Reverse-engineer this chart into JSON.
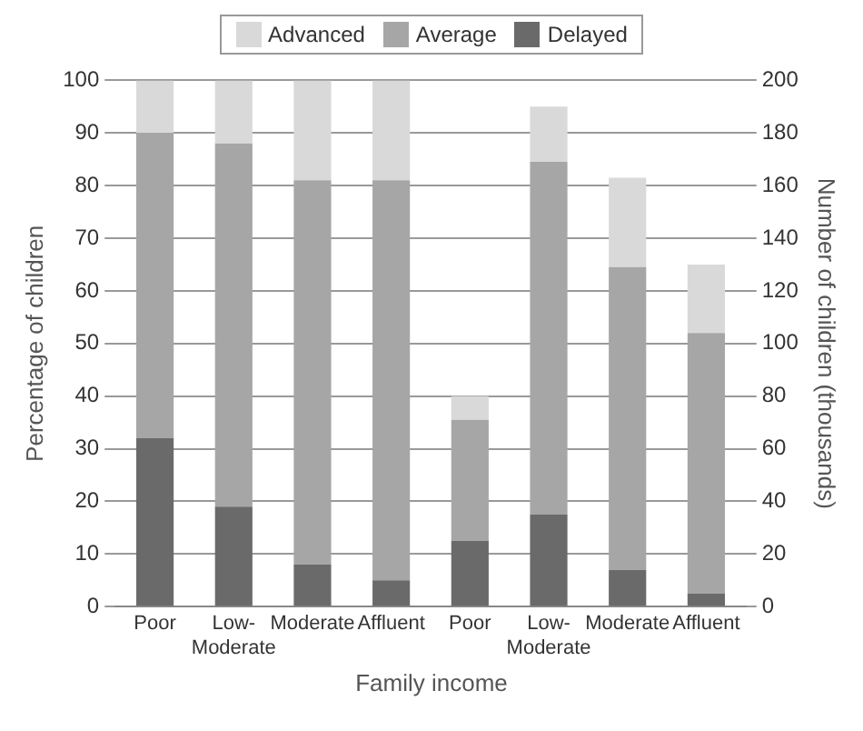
{
  "chart_data": [
    {
      "type": "bar",
      "stacked": true,
      "ylabel": "Percentage of children",
      "xlabel": "Family income",
      "legend": "top",
      "grid": "y",
      "categories": [
        "Poor",
        "Low-Moderate",
        "Moderate",
        "Affluent"
      ],
      "ylim": [
        0,
        100
      ],
      "yticks": [
        0,
        10,
        20,
        30,
        40,
        50,
        60,
        70,
        80,
        90,
        100
      ],
      "series": [
        {
          "name": "Delayed",
          "color": "#6a6a6a",
          "values": [
            32,
            19,
            8,
            5
          ]
        },
        {
          "name": "Average",
          "color": "#a6a6a6",
          "values": [
            58,
            69,
            73,
            76
          ]
        },
        {
          "name": "Advanced",
          "color": "#d9d9d9",
          "values": [
            10,
            12,
            19,
            19
          ]
        }
      ]
    },
    {
      "type": "bar",
      "stacked": true,
      "y2label": "Number of children (thousands)",
      "grid": "y",
      "categories": [
        "Poor",
        "Low-Moderate",
        "Moderate",
        "Affluent"
      ],
      "y2lim": [
        0,
        200
      ],
      "y2ticks": [
        0,
        20,
        40,
        60,
        80,
        100,
        120,
        140,
        160,
        180,
        200
      ],
      "series": [
        {
          "color": "#6a6a6a",
          "axis": "y2",
          "values": [
            25,
            35,
            14,
            5
          ]
        },
        {
          "color": "#a6a6a6",
          "axis": "y2",
          "values": [
            46,
            134,
            115,
            99
          ]
        },
        {
          "color": "#d9d9d9",
          "axis": "y2",
          "values": [
            9,
            21,
            34,
            26
          ]
        }
      ]
    }
  ]
}
